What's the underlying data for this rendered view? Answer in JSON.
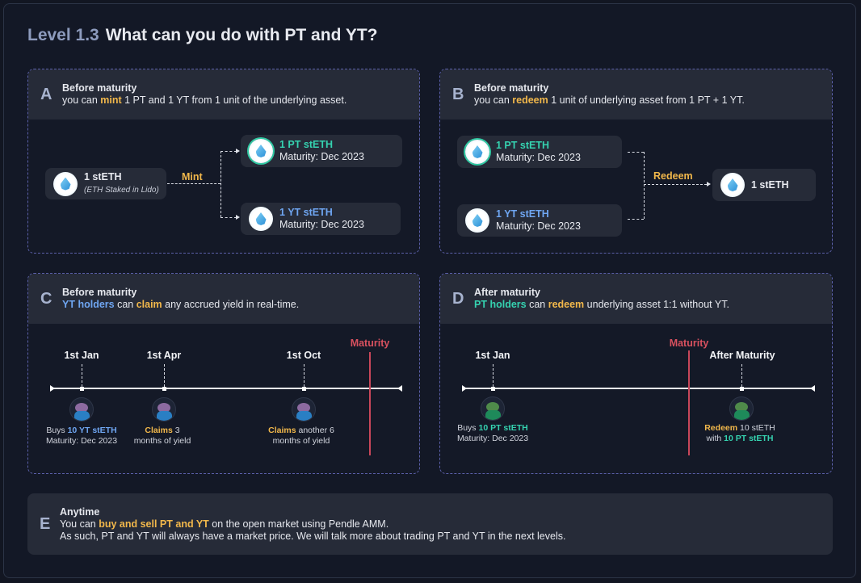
{
  "header": {
    "level": "Level 1.3",
    "title": "What can you do with PT and YT?"
  },
  "colors": {
    "orange": "#f2b84b",
    "teal": "#35d2b0",
    "blue": "#6fa6f2",
    "red": "#d8515f",
    "background": "#121622"
  },
  "panel_a": {
    "letter": "A",
    "heading": "Before maturity",
    "line": [
      "you can ",
      "mint",
      " 1 PT and 1 YT from 1 unit of the underlying asset."
    ],
    "source": {
      "name": "1 stETH",
      "sub": "(ETH Staked in Lido)",
      "icon": "steth-icon"
    },
    "action": "Mint",
    "pt": {
      "name": "1 PT stETH",
      "maturity": "Maturity: Dec 2023"
    },
    "yt": {
      "name": "1 YT stETH",
      "maturity": "Maturity: Dec 2023"
    }
  },
  "panel_b": {
    "letter": "B",
    "heading": "Before maturity",
    "line": [
      "you can ",
      "redeem",
      " 1 unit of underlying asset from 1 PT + 1 YT."
    ],
    "pt": {
      "name": "1 PT stETH",
      "maturity": "Maturity: Dec 2023"
    },
    "yt": {
      "name": "1 YT stETH",
      "maturity": "Maturity: Dec 2023"
    },
    "action": "Redeem",
    "result": "1 stETH"
  },
  "panel_c": {
    "letter": "C",
    "heading": "Before maturity",
    "line": [
      "YT holders",
      " can ",
      "claim",
      " any accrued yield in real-time."
    ],
    "maturity": "Maturity",
    "events": [
      {
        "date": "1st Jan",
        "cap1": [
          "Buys ",
          "10 YT stETH"
        ],
        "cap2": "Maturity: Dec 2023"
      },
      {
        "date": "1st Apr",
        "cap1": [
          "Claims",
          " 3"
        ],
        "cap2": "months of yield"
      },
      {
        "date": "1st Oct",
        "cap1": [
          "Claims",
          " another 6"
        ],
        "cap2": "months of yield"
      }
    ]
  },
  "panel_d": {
    "letter": "D",
    "heading": "After maturity",
    "line": [
      "PT holders",
      " can ",
      "redeem",
      " underlying asset 1:1 without YT."
    ],
    "maturity": "Maturity",
    "events": [
      {
        "date": "1st Jan",
        "cap1": [
          "Buys ",
          "10 PT stETH"
        ],
        "cap2": "Maturity: Dec 2023"
      },
      {
        "date": "After Maturity",
        "cap1": [
          "Redeem",
          " 10 stETH"
        ],
        "cap2": [
          "with ",
          "10 PT stETH"
        ]
      }
    ]
  },
  "panel_e": {
    "letter": "E",
    "heading": "Anytime",
    "line1": [
      "You can ",
      "buy and sell PT and YT",
      " on the open market using Pendle AMM."
    ],
    "line2": "As such, PT and YT will always have a market price. We will talk more about trading PT and YT in the next levels."
  }
}
